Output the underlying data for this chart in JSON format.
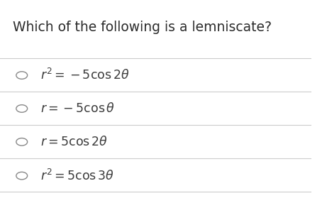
{
  "title": "Which of the following is a lemniscate?",
  "options": [
    "$r^2 = -5\\cos 2\\theta$",
    "$r = -5\\cos \\theta$",
    "$r = 5\\cos 2\\theta$",
    "$r^2 = 5\\cos 3\\theta$"
  ],
  "background_color": "#ffffff",
  "title_color": "#2c2c2c",
  "option_color": "#3c3c3c",
  "circle_color": "#888888",
  "line_color": "#cccccc",
  "title_fontsize": 13.5,
  "option_fontsize": 12.5
}
